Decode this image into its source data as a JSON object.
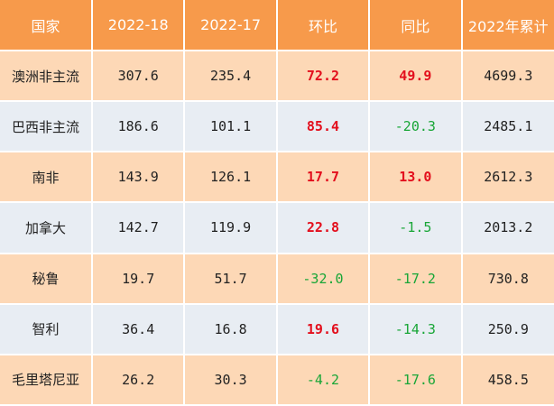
{
  "table": {
    "headers": [
      "国家",
      "2022-18",
      "2022-17",
      "环比",
      "同比",
      "2022年累计"
    ],
    "rows": [
      [
        "澳洲非主流",
        "307.6",
        "235.4",
        "72.2",
        "49.9",
        "4699.3"
      ],
      [
        "巴西非主流",
        "186.6",
        "101.1",
        "85.4",
        "-20.3",
        "2485.1"
      ],
      [
        "南非",
        "143.9",
        "126.1",
        "17.7",
        "13.0",
        "2612.3"
      ],
      [
        "加拿大",
        "142.7",
        "119.9",
        "22.8",
        "-1.5",
        "2013.2"
      ],
      [
        "秘鲁",
        "19.7",
        "51.7",
        "-32.0",
        "-17.2",
        "730.8"
      ],
      [
        "智利",
        "36.4",
        "16.8",
        "19.6",
        "-14.3",
        "250.9"
      ],
      [
        "毛里塔尼亚",
        "26.2",
        "30.3",
        "-4.2",
        "-17.6",
        "458.5"
      ]
    ]
  },
  "colors": {
    "header_bg": "#f79a4b",
    "row_odd_bg": "#fdd8b6",
    "row_even_bg": "#e8edf3",
    "positive": "#e30f1d",
    "negative": "#19a637"
  }
}
